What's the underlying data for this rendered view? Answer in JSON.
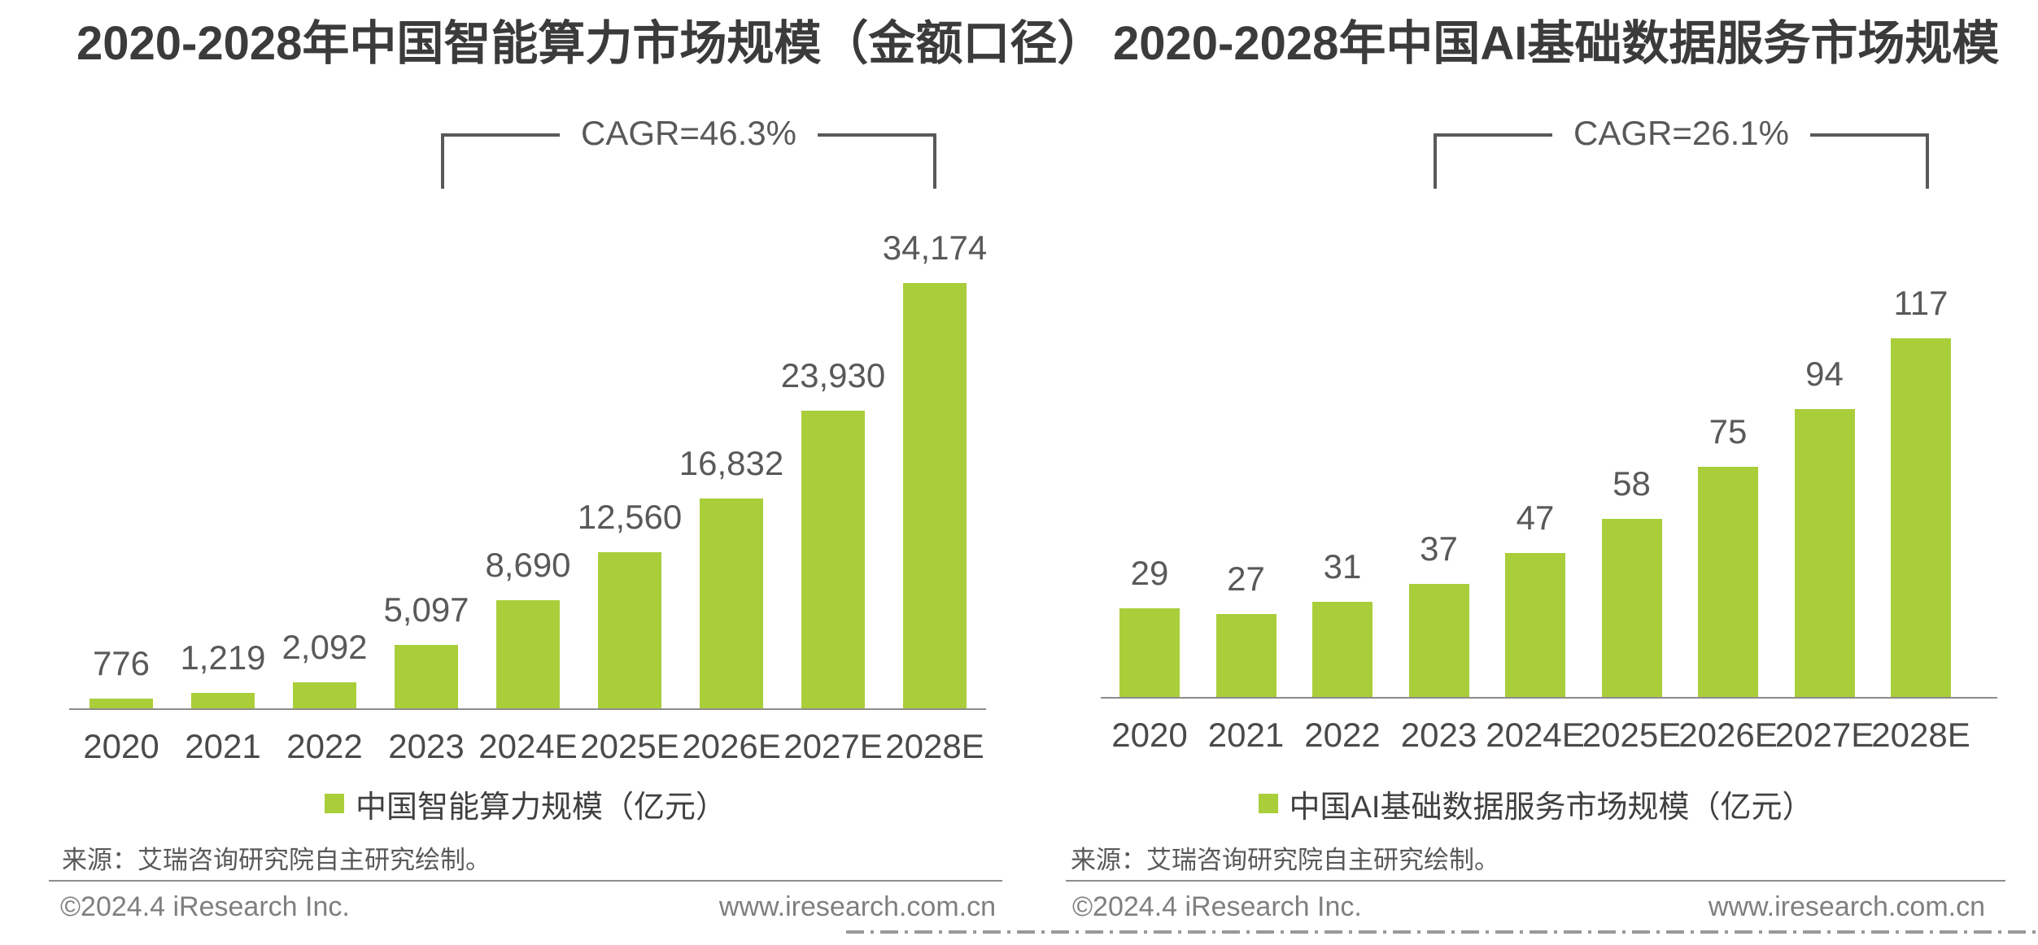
{
  "colors": {
    "bar_green": "#a9ce3a",
    "title_text": "#3b3b3b",
    "label_text": "#595959",
    "category_text": "#4a4a4a",
    "axis_line": "#8c8c8c",
    "footer_text": "#7f7f7f"
  },
  "chart_data": [
    {
      "type": "bar",
      "title": "2020-2028年中国智能算力市场规模（金额口径）",
      "annotation": "CAGR=46.3%",
      "categories": [
        "2020",
        "2021",
        "2022",
        "2023",
        "2024E",
        "2025E",
        "2026E",
        "2027E",
        "2028E"
      ],
      "values": [
        776,
        1219,
        2092,
        5097,
        8690,
        12560,
        16832,
        23930,
        34174
      ],
      "labels": [
        "776",
        "1,219",
        "2,092",
        "5,097",
        "8,690",
        "12,560",
        "16,832",
        "23,930",
        "34,174"
      ],
      "legend": "中国智能算力规模（亿元）",
      "legend_position": "bottom",
      "bar_color": "#a9ce3a",
      "ylim": [
        0,
        34174
      ],
      "grid": false,
      "source": "来源：艾瑞咨询研究院自主研究绘制。",
      "footer_left": "©2024.4 iResearch Inc.",
      "footer_right": "www.iresearch.com.cn"
    },
    {
      "type": "bar",
      "title": "2020-2028年中国AI基础数据服务市场规模",
      "annotation": "CAGR=26.1%",
      "categories": [
        "2020",
        "2021",
        "2022",
        "2023",
        "2024E",
        "2025E",
        "2026E",
        "2027E",
        "2028E"
      ],
      "values": [
        29,
        27,
        31,
        37,
        47,
        58,
        75,
        94,
        117
      ],
      "labels": [
        "29",
        "27",
        "31",
        "37",
        "47",
        "58",
        "75",
        "94",
        "117"
      ],
      "legend": "中国AI基础数据服务市场规模（亿元）",
      "legend_position": "bottom",
      "bar_color": "#a9ce3a",
      "ylim": [
        0,
        117
      ],
      "grid": false,
      "source": "来源：艾瑞咨询研究院自主研究绘制。",
      "footer_left": "©2024.4 iResearch Inc.",
      "footer_right": "www.iresearch.com.cn"
    }
  ]
}
